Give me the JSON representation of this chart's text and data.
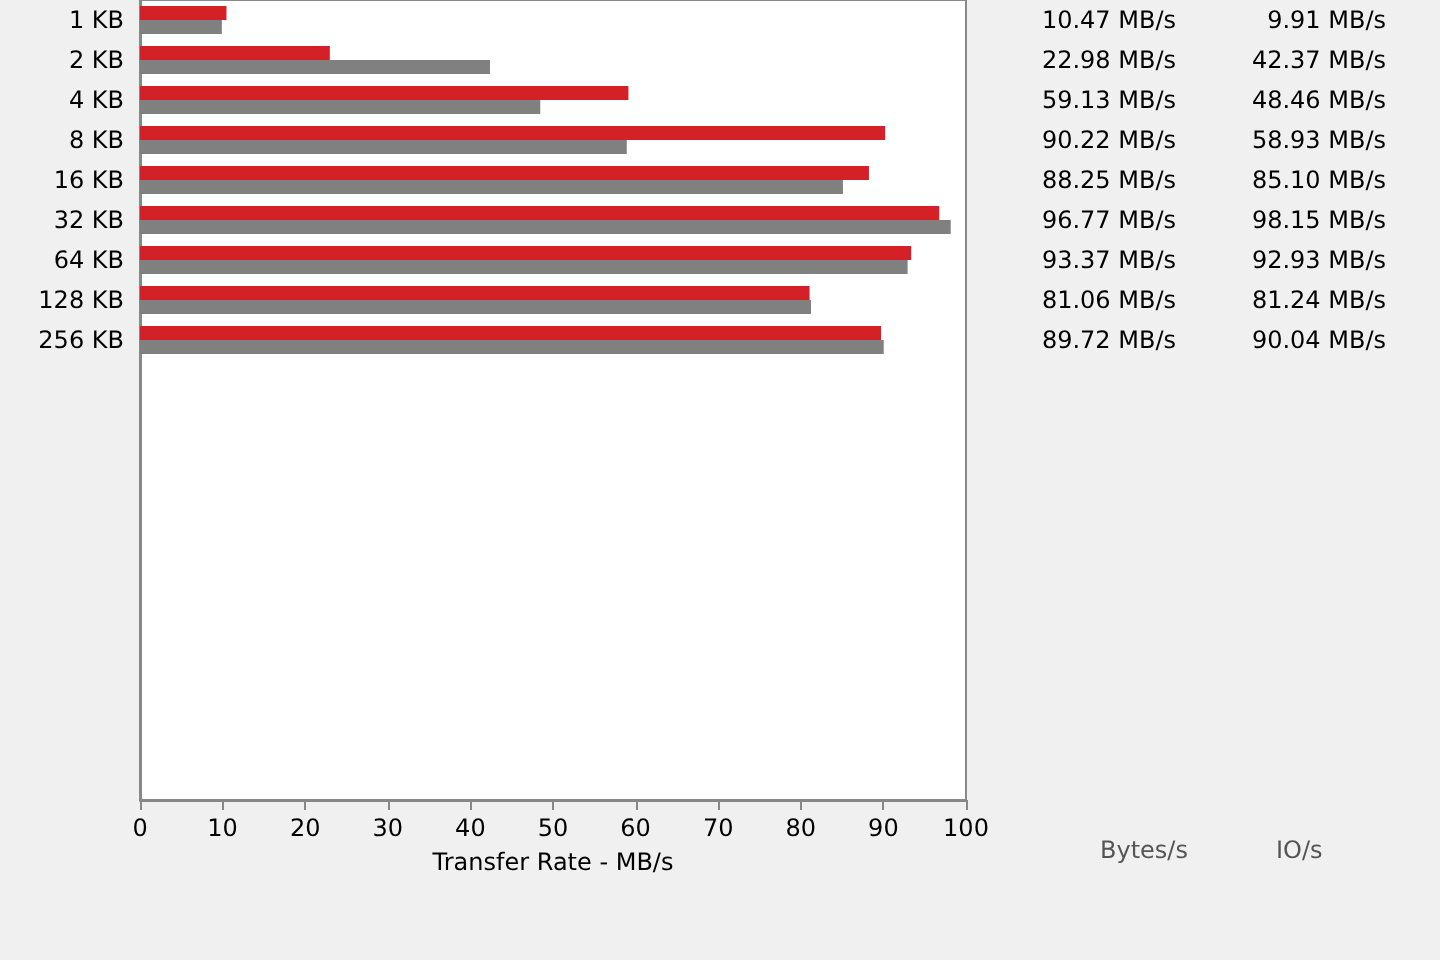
{
  "chart_data": {
    "type": "bar",
    "orientation": "horizontal",
    "xlabel": "Transfer Rate - MB/s",
    "categories": [
      "1 KB",
      "2 KB",
      "4 KB",
      "8 KB",
      "16 KB",
      "32 KB",
      "64 KB",
      "128 KB",
      "256 KB",
      null,
      null,
      null,
      null,
      null,
      null,
      null,
      null,
      null,
      null,
      null
    ],
    "series": [
      {
        "color": "#d42027",
        "values": [
          10.47,
          22.98,
          59.13,
          90.22,
          88.25,
          96.77,
          93.37,
          81.06,
          89.72,
          null,
          null,
          null,
          null,
          null,
          null,
          null,
          null,
          null,
          null,
          null
        ],
        "value_labels": [
          "10.47 MB/s",
          "22.98 MB/s",
          "59.13 MB/s",
          "90.22 MB/s",
          "88.25 MB/s",
          "96.77 MB/s",
          "93.37 MB/s",
          "81.06 MB/s",
          "89.72 MB/s",
          null,
          null,
          null,
          null,
          null,
          null,
          null,
          null,
          null,
          null,
          null
        ]
      },
      {
        "color": "#808080",
        "values": [
          9.91,
          42.37,
          48.46,
          58.93,
          85.1,
          98.15,
          92.93,
          81.24,
          90.04,
          null,
          null,
          null,
          null,
          null,
          null,
          null,
          null,
          null,
          null,
          null
        ],
        "value_labels": [
          "9.91 MB/s",
          "42.37 MB/s",
          "48.46 MB/s",
          "58.93 MB/s",
          "85.10 MB/s",
          "98.15 MB/s",
          "92.93 MB/s",
          "81.24 MB/s",
          "90.04 MB/s",
          null,
          null,
          null,
          null,
          null,
          null,
          null,
          null,
          null,
          null,
          null
        ]
      }
    ],
    "xlim": [
      0,
      100
    ],
    "xticks": [
      0,
      10,
      20,
      30,
      40,
      50,
      60,
      70,
      80,
      90,
      100
    ],
    "grid": false,
    "annotations": [
      "Bytes/s",
      "IO/s"
    ]
  }
}
